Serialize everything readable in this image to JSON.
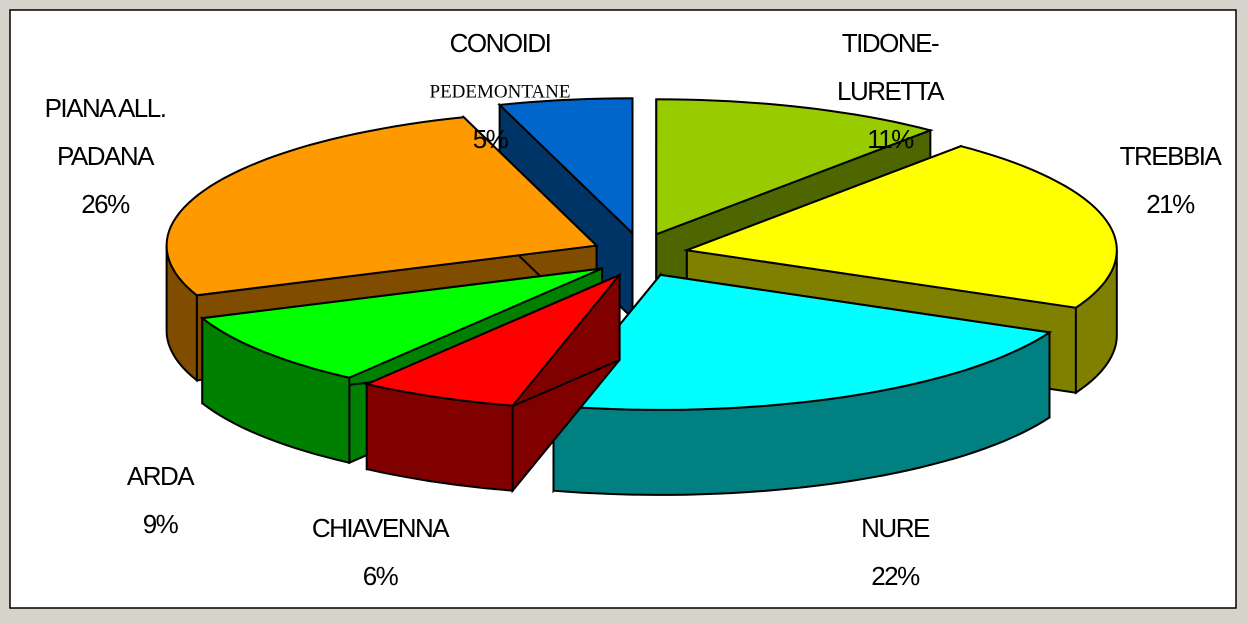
{
  "chart_data": {
    "type": "pie3d",
    "categories": [
      [
        "TIDONE-",
        "LURETTA"
      ],
      [
        "TREBBIA"
      ],
      [
        "NURE"
      ],
      [
        "CHIAVENNA"
      ],
      [
        "ARDA"
      ],
      [
        "PIANA ALL.",
        "PADANA"
      ],
      [
        "CONOIDI",
        "PEDEMONTANE"
      ]
    ],
    "values": [
      11,
      21,
      22,
      6,
      9,
      26,
      5
    ],
    "value_labels": [
      "11%",
      "21%",
      "22%",
      "6%",
      "9%",
      "26%",
      "5%"
    ],
    "colors": [
      "#99cc00",
      "#ffff00",
      "#00ffff",
      "#ff0000",
      "#00ff00",
      "#ff9900",
      "#0066cc"
    ]
  }
}
